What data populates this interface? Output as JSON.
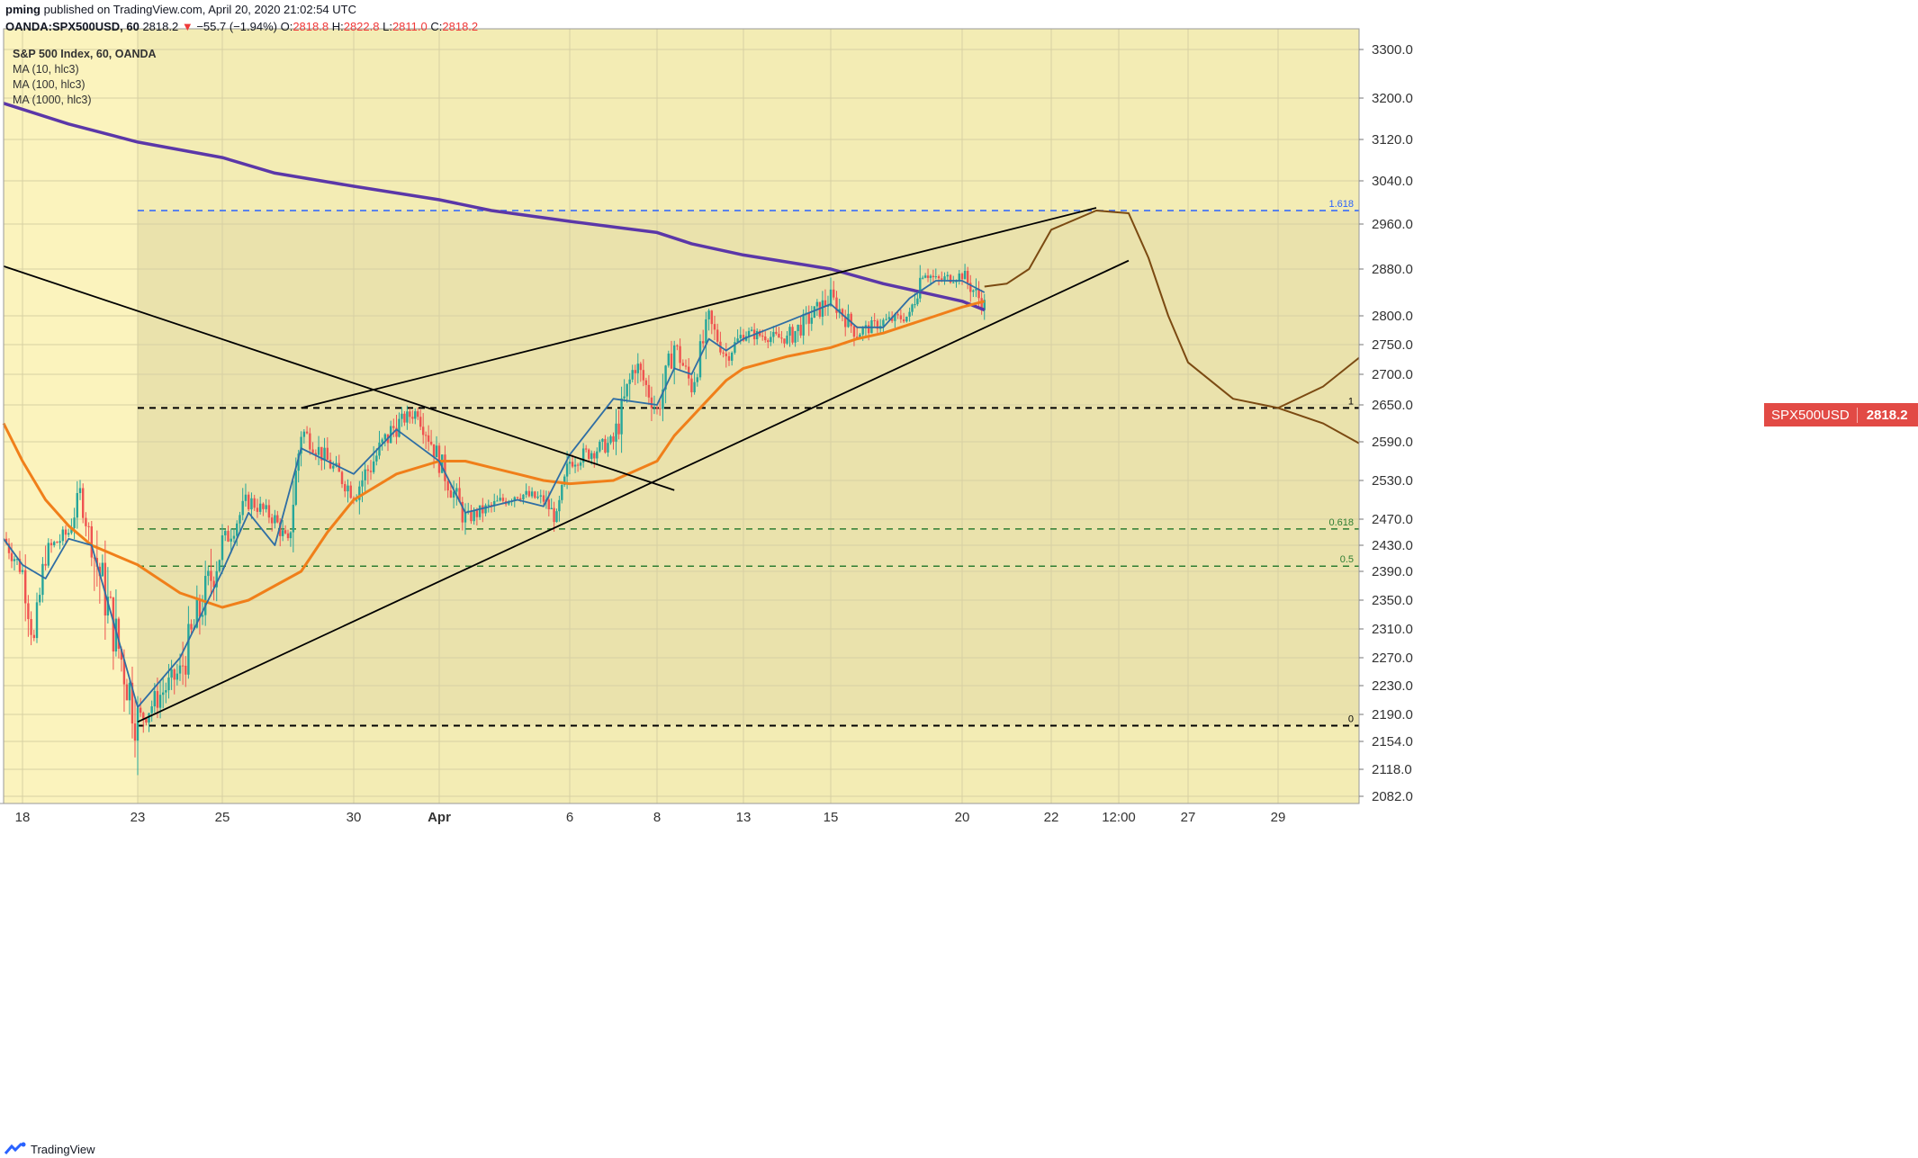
{
  "header": {
    "author": "pming",
    "published_text": "published on TradingView.com, April 20, 2020 21:02:54 UTC",
    "symbol": "OANDA:SPX500USD, 60",
    "last": "2818.2",
    "change": "−55.7 (−1.94%)",
    "open_label": "O:",
    "open": "2818.8",
    "high_label": "H:",
    "high": "2822.8",
    "low_label": "L:",
    "low": "2811.0",
    "close_label": "C:",
    "close": "2818.2"
  },
  "legend": {
    "title": "S&P 500 Index, 60, OANDA",
    "ma1": "MA (10, hlc3)",
    "ma2": "MA (100, hlc3)",
    "ma3": "MA (1000, hlc3)"
  },
  "price_tag": {
    "symbol": "SPX500USD",
    "price": "2818.2"
  },
  "footer": {
    "brand": "TradingView"
  },
  "colors": {
    "bg_left": "#fbf3bd",
    "bg_right": "#f3ecb4",
    "shade": "#e7dfa9",
    "candle_up": "#26a69a",
    "candle_down": "#ef5350",
    "ma10": "#2f6ea4",
    "ma100": "#f07f1a",
    "ma1000": "#5b37a8",
    "projection": "#7b4a12",
    "fib_blue": "#2962ff",
    "fib_green": "#2e7d32"
  },
  "chart_data": {
    "type": "candlestick",
    "title": "S&P 500 Index, 60, OANDA",
    "y_ticks": [
      3300,
      3200,
      3120,
      3040,
      2960,
      2880,
      2800,
      2750,
      2700,
      2650,
      2590,
      2530,
      2470,
      2430,
      2390,
      2350,
      2310,
      2270,
      2230,
      2190,
      2154,
      2118,
      2082
    ],
    "x_ticks": [
      {
        "label": "18",
        "date": "2020-03-18"
      },
      {
        "label": "23",
        "date": "2020-03-23"
      },
      {
        "label": "25",
        "date": "2020-03-25"
      },
      {
        "label": "30",
        "date": "2020-03-30"
      },
      {
        "label": "Apr",
        "date": "2020-04-01"
      },
      {
        "label": "6",
        "date": "2020-04-06"
      },
      {
        "label": "8",
        "date": "2020-04-08"
      },
      {
        "label": "13",
        "date": "2020-04-13"
      },
      {
        "label": "15",
        "date": "2020-04-15"
      },
      {
        "label": "20",
        "date": "2020-04-20"
      },
      {
        "label": "22",
        "date": "2020-04-22"
      },
      {
        "label": "12:00",
        "date": "2020-04-23 12:00"
      },
      {
        "label": "27",
        "date": "2020-04-27"
      },
      {
        "label": "29",
        "date": "2020-04-29"
      }
    ],
    "fib_levels": [
      {
        "label": "1.618",
        "price": 2985
      },
      {
        "label": "1",
        "price": 2645
      },
      {
        "label": "0.618",
        "price": 2455
      },
      {
        "label": "0.5",
        "price": 2398
      },
      {
        "label": "0",
        "price": 2175
      }
    ],
    "anchor_path": [
      {
        "date": "2020-03-17",
        "price": 2440
      },
      {
        "date": "2020-03-18",
        "price": 2390
      },
      {
        "date": "2020-03-18 12:00",
        "price": 2290
      },
      {
        "date": "2020-03-19",
        "price": 2420
      },
      {
        "date": "2020-03-20",
        "price": 2450
      },
      {
        "date": "2020-03-20 12:00",
        "price": 2510
      },
      {
        "date": "2020-03-21",
        "price": 2430
      },
      {
        "date": "2020-03-23",
        "price": 2180
      },
      {
        "date": "2020-03-24",
        "price": 2250
      },
      {
        "date": "2020-03-25",
        "price": 2430
      },
      {
        "date": "2020-03-26",
        "price": 2500
      },
      {
        "date": "2020-03-27",
        "price": 2470
      },
      {
        "date": "2020-03-27 12:00",
        "price": 2430
      },
      {
        "date": "2020-03-28",
        "price": 2610
      },
      {
        "date": "2020-03-29",
        "price": 2560
      },
      {
        "date": "2020-03-30",
        "price": 2510
      },
      {
        "date": "2020-03-31",
        "price": 2620
      },
      {
        "date": "2020-03-31 12:00",
        "price": 2640
      },
      {
        "date": "2020-04-01",
        "price": 2560
      },
      {
        "date": "2020-04-02",
        "price": 2470
      },
      {
        "date": "2020-04-03",
        "price": 2490
      },
      {
        "date": "2020-04-04",
        "price": 2510
      },
      {
        "date": "2020-04-05",
        "price": 2500
      },
      {
        "date": "2020-04-05 12:00",
        "price": 2470
      },
      {
        "date": "2020-04-06",
        "price": 2560
      },
      {
        "date": "2020-04-07",
        "price": 2590
      },
      {
        "date": "2020-04-07 12:00",
        "price": 2720
      },
      {
        "date": "2020-04-08",
        "price": 2640
      },
      {
        "date": "2020-04-09",
        "price": 2750
      },
      {
        "date": "2020-04-10",
        "price": 2680
      },
      {
        "date": "2020-04-11",
        "price": 2790
      },
      {
        "date": "2020-04-12",
        "price": 2730
      },
      {
        "date": "2020-04-13",
        "price": 2770
      },
      {
        "date": "2020-04-14",
        "price": 2760
      },
      {
        "date": "2020-04-15",
        "price": 2830
      },
      {
        "date": "2020-04-16",
        "price": 2770
      },
      {
        "date": "2020-04-17",
        "price": 2790
      },
      {
        "date": "2020-04-18",
        "price": 2800
      },
      {
        "date": "2020-04-18 12:00",
        "price": 2880
      },
      {
        "date": "2020-04-19",
        "price": 2860
      },
      {
        "date": "2020-04-20",
        "price": 2870
      },
      {
        "date": "2020-04-20 12:00",
        "price": 2818
      }
    ],
    "ma10": [
      {
        "date": "2020-03-17",
        "price": 2440
      },
      {
        "date": "2020-03-18",
        "price": 2400
      },
      {
        "date": "2020-03-19",
        "price": 2380
      },
      {
        "date": "2020-03-20",
        "price": 2440
      },
      {
        "date": "2020-03-21",
        "price": 2430
      },
      {
        "date": "2020-03-23",
        "price": 2200
      },
      {
        "date": "2020-03-24",
        "price": 2270
      },
      {
        "date": "2020-03-25",
        "price": 2390
      },
      {
        "date": "2020-03-26",
        "price": 2480
      },
      {
        "date": "2020-03-27",
        "price": 2430
      },
      {
        "date": "2020-03-28",
        "price": 2580
      },
      {
        "date": "2020-03-30",
        "price": 2540
      },
      {
        "date": "2020-03-31",
        "price": 2610
      },
      {
        "date": "2020-04-01",
        "price": 2560
      },
      {
        "date": "2020-04-02",
        "price": 2480
      },
      {
        "date": "2020-04-04",
        "price": 2500
      },
      {
        "date": "2020-04-05",
        "price": 2490
      },
      {
        "date": "2020-04-06",
        "price": 2570
      },
      {
        "date": "2020-04-07",
        "price": 2660
      },
      {
        "date": "2020-04-08",
        "price": 2650
      },
      {
        "date": "2020-04-09",
        "price": 2710
      },
      {
        "date": "2020-04-10",
        "price": 2700
      },
      {
        "date": "2020-04-11",
        "price": 2760
      },
      {
        "date": "2020-04-12",
        "price": 2740
      },
      {
        "date": "2020-04-13",
        "price": 2760
      },
      {
        "date": "2020-04-14",
        "price": 2790
      },
      {
        "date": "2020-04-15",
        "price": 2820
      },
      {
        "date": "2020-04-16",
        "price": 2780
      },
      {
        "date": "2020-04-17",
        "price": 2780
      },
      {
        "date": "2020-04-18",
        "price": 2830
      },
      {
        "date": "2020-04-19",
        "price": 2860
      },
      {
        "date": "2020-04-20",
        "price": 2860
      },
      {
        "date": "2020-04-20 12:00",
        "price": 2840
      }
    ],
    "ma100": [
      {
        "date": "2020-03-17",
        "price": 2620
      },
      {
        "date": "2020-03-18",
        "price": 2560
      },
      {
        "date": "2020-03-19",
        "price": 2500
      },
      {
        "date": "2020-03-20",
        "price": 2460
      },
      {
        "date": "2020-03-21",
        "price": 2430
      },
      {
        "date": "2020-03-23",
        "price": 2400
      },
      {
        "date": "2020-03-24",
        "price": 2360
      },
      {
        "date": "2020-03-25",
        "price": 2340
      },
      {
        "date": "2020-03-26",
        "price": 2350
      },
      {
        "date": "2020-03-27",
        "price": 2370
      },
      {
        "date": "2020-03-28",
        "price": 2390
      },
      {
        "date": "2020-03-29",
        "price": 2450
      },
      {
        "date": "2020-03-30",
        "price": 2500
      },
      {
        "date": "2020-03-31",
        "price": 2540
      },
      {
        "date": "2020-04-01",
        "price": 2560
      },
      {
        "date": "2020-04-02",
        "price": 2560
      },
      {
        "date": "2020-04-03",
        "price": 2550
      },
      {
        "date": "2020-04-04",
        "price": 2540
      },
      {
        "date": "2020-04-05",
        "price": 2530
      },
      {
        "date": "2020-04-06",
        "price": 2525
      },
      {
        "date": "2020-04-07",
        "price": 2530
      },
      {
        "date": "2020-04-08",
        "price": 2560
      },
      {
        "date": "2020-04-09",
        "price": 2600
      },
      {
        "date": "2020-04-10",
        "price": 2630
      },
      {
        "date": "2020-04-11",
        "price": 2660
      },
      {
        "date": "2020-04-12",
        "price": 2690
      },
      {
        "date": "2020-04-13",
        "price": 2710
      },
      {
        "date": "2020-04-14",
        "price": 2730
      },
      {
        "date": "2020-04-15",
        "price": 2745
      },
      {
        "date": "2020-04-16",
        "price": 2760
      },
      {
        "date": "2020-04-17",
        "price": 2770
      },
      {
        "date": "2020-04-18",
        "price": 2785
      },
      {
        "date": "2020-04-19",
        "price": 2800
      },
      {
        "date": "2020-04-20",
        "price": 2815
      },
      {
        "date": "2020-04-20 12:00",
        "price": 2825
      }
    ],
    "ma1000": [
      {
        "date": "2020-03-17",
        "price": 3190
      },
      {
        "date": "2020-03-20",
        "price": 3150
      },
      {
        "date": "2020-03-23",
        "price": 3115
      },
      {
        "date": "2020-03-25",
        "price": 3085
      },
      {
        "date": "2020-03-27",
        "price": 3055
      },
      {
        "date": "2020-03-30",
        "price": 3030
      },
      {
        "date": "2020-04-01",
        "price": 3005
      },
      {
        "date": "2020-04-03",
        "price": 2985
      },
      {
        "date": "2020-04-06",
        "price": 2965
      },
      {
        "date": "2020-04-08",
        "price": 2945
      },
      {
        "date": "2020-04-10",
        "price": 2925
      },
      {
        "date": "2020-04-13",
        "price": 2905
      },
      {
        "date": "2020-04-15",
        "price": 2880
      },
      {
        "date": "2020-04-17",
        "price": 2855
      },
      {
        "date": "2020-04-20",
        "price": 2825
      },
      {
        "date": "2020-04-20 12:00",
        "price": 2810
      }
    ],
    "trendlines": [
      {
        "name": "upper",
        "from": {
          "date": "2020-03-28",
          "price": 2645
        },
        "to": {
          "date": "2020-04-23",
          "price": 2990
        }
      },
      {
        "name": "lower",
        "from": {
          "date": "2020-03-23",
          "price": 2180
        },
        "to": {
          "date": "2020-04-24",
          "price": 2895
        }
      },
      {
        "name": "downtrend",
        "from": {
          "date": "2020-03-17",
          "price": 2885
        },
        "to": {
          "date": "2020-04-09",
          "price": 2515
        }
      }
    ],
    "projection": [
      {
        "date": "2020-04-20 12:00",
        "price": 2850
      },
      {
        "date": "2020-04-21",
        "price": 2855
      },
      {
        "date": "2020-04-21 12:00",
        "price": 2880
      },
      {
        "date": "2020-04-22",
        "price": 2950
      },
      {
        "date": "2020-04-23",
        "price": 2985
      },
      {
        "date": "2020-04-24",
        "price": 2980
      },
      {
        "date": "2020-04-25",
        "price": 2900
      },
      {
        "date": "2020-04-26",
        "price": 2800
      },
      {
        "date": "2020-04-27",
        "price": 2720
      },
      {
        "date": "2020-04-28",
        "price": 2660
      },
      {
        "date": "2020-04-29",
        "price": 2645
      },
      {
        "date": "2020-04-30",
        "price": 2680
      },
      {
        "date": "2020-05-01",
        "price": 2740
      }
    ],
    "projection_branch": [
      {
        "date": "2020-04-29",
        "price": 2645
      },
      {
        "date": "2020-04-30",
        "price": 2620
      },
      {
        "date": "2020-05-01",
        "price": 2580
      }
    ]
  }
}
